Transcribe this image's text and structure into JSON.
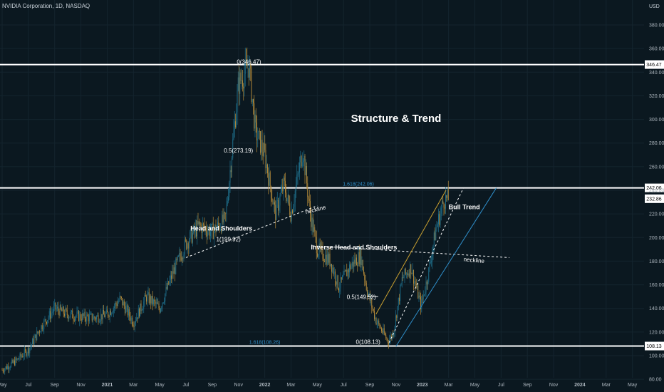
{
  "header": {
    "symbol_line": "NVIDIA Corporation, 1D, NASDAQ",
    "currency": "USD"
  },
  "chart_data": {
    "type": "candlestick",
    "title": "Structure & Trend",
    "x_ticks": [
      "May",
      "Jul",
      "Sep",
      "Nov",
      "2021",
      "Mar",
      "May",
      "Jul",
      "Sep",
      "Nov",
      "2022",
      "Mar",
      "May",
      "Jul",
      "Sep",
      "Nov",
      "2023",
      "Mar",
      "May",
      "Jul",
      "Sep",
      "Nov",
      "2024",
      "Mar",
      "May"
    ],
    "y_ticks": [
      80,
      100,
      120,
      140,
      160,
      180,
      200,
      220,
      240,
      260,
      280,
      300,
      320,
      340,
      360,
      380
    ],
    "ylim": [
      70,
      400
    ],
    "horizontal_levels": [
      {
        "label": "346.47",
        "value": 346.47
      },
      {
        "label": "242.06",
        "value": 242.06
      },
      {
        "label": "108.13",
        "value": 108.13
      }
    ],
    "last_price": {
      "label": "232.86",
      "value": 232.86
    },
    "fib_labels": {
      "top": "0(346.47)",
      "mid": "0.5(273.19)",
      "hs": "1(199.92)",
      "ext_upper": "1.618(242.06)",
      "ext_lower": "1.618(108.26)",
      "low": "0(108.13)",
      "low_mid": "0.5(149.52)"
    },
    "annotations": {
      "head_shoulders": "Head and Shoulders",
      "neckline_1": "neckline",
      "inverse_hs": "Inverse Head and Shoulders",
      "neckline_2": "neckline",
      "bull_trend": "Bull Trend"
    },
    "colors": {
      "background": "#0b1820",
      "up": "#1e6f8c",
      "down": "#b58a3a",
      "level": "#ffffff",
      "fib_text": "#2f8ec9",
      "channel_blue": "#2f8ec9",
      "channel_gold": "#c9a030"
    },
    "price_path": [
      [
        "2020-05-01",
        88
      ],
      [
        "2020-06-01",
        95
      ],
      [
        "2020-07-01",
        105
      ],
      [
        "2020-08-01",
        125
      ],
      [
        "2020-09-01",
        140
      ],
      [
        "2020-10-01",
        135
      ],
      [
        "2020-11-01",
        133
      ],
      [
        "2020-12-01",
        132
      ],
      [
        "2021-01-01",
        135
      ],
      [
        "2021-02-01",
        148
      ],
      [
        "2021-03-01",
        128
      ],
      [
        "2021-04-01",
        150
      ],
      [
        "2021-05-01",
        140
      ],
      [
        "2021-06-01",
        170
      ],
      [
        "2021-07-01",
        195
      ],
      [
        "2021-08-01",
        210
      ],
      [
        "2021-09-01",
        205
      ],
      [
        "2021-10-01",
        215
      ],
      [
        "2021-11-01",
        330
      ],
      [
        "2021-11-25",
        346
      ],
      [
        "2021-12-10",
        290
      ],
      [
        "2022-01-01",
        270
      ],
      [
        "2022-01-25",
        220
      ],
      [
        "2022-02-15",
        245
      ],
      [
        "2022-03-01",
        220
      ],
      [
        "2022-03-28",
        275
      ],
      [
        "2022-04-15",
        220
      ],
      [
        "2022-05-01",
        190
      ],
      [
        "2022-06-01",
        180
      ],
      [
        "2022-06-20",
        158
      ],
      [
        "2022-07-15",
        175
      ],
      [
        "2022-08-10",
        185
      ],
      [
        "2022-08-25",
        155
      ],
      [
        "2022-09-15",
        130
      ],
      [
        "2022-10-13",
        112
      ],
      [
        "2022-10-25",
        120
      ],
      [
        "2022-11-15",
        165
      ],
      [
        "2022-12-05",
        175
      ],
      [
        "2022-12-28",
        142
      ],
      [
        "2023-01-15",
        170
      ],
      [
        "2023-02-01",
        205
      ],
      [
        "2023-02-20",
        232
      ],
      [
        "2023-03-01",
        232.86
      ]
    ]
  }
}
